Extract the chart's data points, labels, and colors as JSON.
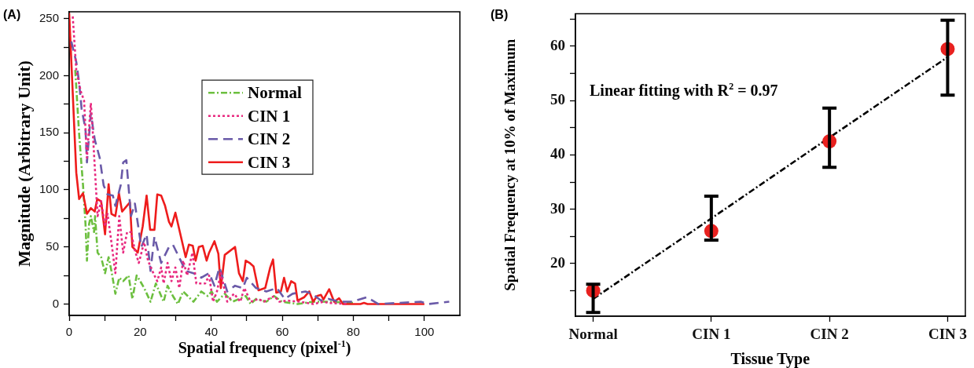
{
  "chart_data": [
    {
      "type": "line",
      "title": "(A)",
      "xlabel": "Spatial frequency (pixel$^{-1}$)",
      "ylabel": "Magnitude (Arbitrary Unit)",
      "xlim": [
        0,
        110
      ],
      "ylim": [
        -10,
        256
      ],
      "xticks": [
        0,
        {
          "value": 10,
          "label": null
        },
        20,
        {
          "value": 30,
          "label": null
        },
        40,
        {
          "value": 50,
          "label": null
        },
        60,
        {
          "value": 70,
          "label": null
        },
        80,
        {
          "value": 90,
          "label": null
        },
        100
      ],
      "yticks": [
        0,
        {
          "value": 25,
          "label": null
        },
        50,
        {
          "value": 75,
          "label": null
        },
        100,
        {
          "value": 125,
          "label": null
        },
        150,
        {
          "value": 175,
          "label": null
        },
        200,
        {
          "value": 225,
          "label": null
        },
        250
      ],
      "legend": "top",
      "series": [
        {
          "name": "Normal",
          "color": "#6cbf3f",
          "line_style": "dashdot",
          "x": [
            1.7,
            2.8,
            3.9,
            4.6,
            5,
            5.6,
            6.1,
            7,
            7.3,
            8,
            9,
            10.1,
            11.1,
            11.9,
            13,
            14.1,
            15.2,
            16.7,
            17.8,
            19,
            20,
            21.1,
            22.9,
            24.4,
            26.6,
            27.7,
            29.2,
            30.6,
            32.1,
            35,
            37.2,
            39,
            40.1,
            41.6,
            43.8,
            46,
            49.7,
            51.1,
            52.6,
            55.5,
            57.7,
            59.9,
            64.3,
            68.7,
            73,
            80
          ],
          "values": [
            205,
            149,
            104,
            70,
            38,
            70,
            77,
            63,
            77,
            45,
            41,
            27,
            41,
            29,
            9,
            23,
            20,
            25,
            4.5,
            25,
            20,
            14,
            2,
            18,
            2,
            16,
            7,
            0,
            11,
            2,
            11,
            7,
            11,
            2,
            9,
            2,
            7,
            0,
            4.5,
            2,
            7,
            2,
            0,
            2,
            2,
            1
          ]
        },
        {
          "name": "CIN 1",
          "color": "#e8297f",
          "line_style": "dotted",
          "x": [
            1,
            2,
            3.2,
            4.2,
            5,
            6.1,
            6.6,
            7.5,
            8,
            9,
            10.1,
            10.8,
            11.9,
            13,
            14.1,
            15.2,
            16.3,
            17.4,
            18.5,
            19.6,
            21.1,
            22.2,
            23.7,
            24.8,
            25.9,
            26.6,
            27.7,
            28.8,
            29.9,
            31,
            32.1,
            33.2,
            34.7,
            35.8,
            37.2,
            38.3,
            39.4,
            40.5,
            41.6,
            42.7,
            44.5,
            46.4,
            48.2,
            49.3,
            51.1,
            53.3,
            54.8,
            57.7,
            59.2,
            61.4,
            65,
            68.7,
            71.6,
            73,
            78
          ],
          "values": [
            252,
            205,
            187,
            178,
            128,
            176,
            153,
            104,
            77,
            90,
            68,
            79,
            54,
            27,
            77,
            45,
            63,
            63,
            47,
            36,
            54,
            38,
            27,
            20,
            32,
            18,
            36,
            20,
            32,
            14,
            38,
            25,
            45,
            18,
            18,
            18,
            25,
            2,
            11,
            27,
            2,
            9,
            2,
            14,
            2,
            4.5,
            2,
            7,
            2,
            3,
            2,
            0,
            2,
            1,
            0
          ]
        },
        {
          "name": "CIN 2",
          "color": "#6a5aa8",
          "line_style": "dashed",
          "x": [
            0.6,
            2,
            2.8,
            3.5,
            4.6,
            5,
            6.1,
            7.2,
            8.6,
            9.7,
            10.8,
            12.3,
            13,
            14.5,
            15.2,
            16.1,
            17.4,
            18.5,
            20.3,
            21.8,
            22.9,
            24,
            25.9,
            28.1,
            29.2,
            31.4,
            32.8,
            35,
            37.2,
            39.4,
            40.9,
            42.3,
            44.5,
            46.7,
            48.9,
            50,
            52.6,
            55.5,
            58.5,
            60.7,
            62.9,
            66.5,
            68.4,
            70.9,
            73,
            76,
            79.7,
            83.8,
            87,
            99,
            101.2,
            107
          ],
          "values": [
            230,
            212,
            194,
            171,
            153,
            124,
            167,
            144,
            128,
            104,
            96,
            95,
            86,
            104,
            124,
            126,
            77,
            88,
            50,
            61,
            29,
            59,
            36,
            50,
            52,
            38,
            29,
            27,
            23,
            27,
            16,
            32,
            11,
            16,
            14,
            23,
            14,
            11,
            14,
            4.5,
            9,
            11,
            9,
            3,
            4.5,
            2,
            2,
            6,
            0,
            2,
            0,
            2
          ]
        },
        {
          "name": "CIN 3",
          "color": "#ee1c1c",
          "line_style": "solid",
          "x": [
            0,
            2,
            2.8,
            3.9,
            5,
            6.1,
            7.2,
            7.9,
            9,
            10.1,
            11.1,
            11.9,
            13,
            14,
            14.9,
            17.1,
            17.8,
            19.3,
            20.7,
            21.8,
            22.8,
            24,
            24.8,
            25.9,
            27,
            28.1,
            28.8,
            29.9,
            32.8,
            33.7,
            34.8,
            35.6,
            36.5,
            37.6,
            38.7,
            39.4,
            40.9,
            42,
            42.7,
            43.8,
            46.7,
            47.8,
            48.9,
            49.7,
            50.8,
            51.9,
            53.3,
            55.2,
            56.6,
            57.4,
            58.3,
            59.6,
            60.5,
            61.4,
            62.5,
            63.6,
            64.3,
            66.2,
            67.6,
            68.7,
            69.8,
            70.9,
            71.6,
            73.2,
            74.6,
            76,
            77.1,
            82,
            83,
            84,
            100
          ],
          "values": [
            255,
            115,
            92,
            97,
            79,
            84,
            81,
            92,
            90,
            61,
            105,
            79,
            77,
            97,
            81,
            89,
            50,
            45,
            68,
            95,
            65,
            65,
            96,
            95,
            86,
            72,
            68,
            80,
            41,
            52,
            51,
            38,
            50,
            51,
            38,
            45,
            55,
            44,
            14,
            43,
            50,
            27,
            20,
            38,
            36,
            33,
            12,
            14,
            32,
            39,
            10,
            11,
            23,
            11,
            20,
            18,
            3,
            6,
            11,
            2,
            7,
            8,
            4,
            13,
            2,
            5,
            0,
            0,
            1,
            0,
            0
          ]
        }
      ]
    },
    {
      "type": "scatter",
      "title": "(B)",
      "xlabel": "Tissue Type",
      "ylabel": "Spatial Frequency at 10% of Maximum",
      "categories": [
        "Normal",
        "CIN 1",
        "CIN 2",
        "CIN 3"
      ],
      "ylim": [
        10.3,
        66
      ],
      "yticks": [
        {
          "value": 15,
          "label": null
        },
        20,
        {
          "value": 25,
          "label": null
        },
        30,
        {
          "value": 35,
          "label": null
        },
        40,
        {
          "value": 45,
          "label": null
        },
        50,
        {
          "value": 55,
          "label": null
        },
        60,
        {
          "value": 65,
          "label": null
        }
      ],
      "annotations": [
        "Linear fitting with R$^{2}$ = 0.97"
      ],
      "series": [
        {
          "type": "line",
          "color": "#000000",
          "line_style": "dashdot",
          "values": [
            13.5,
            28.3,
            43.2,
            58
          ]
        },
        {
          "color": "#e8211f",
          "marker": "circle",
          "values": [
            15,
            26,
            42.5,
            59.5
          ],
          "errors": [
            [
              11,
              16.2
            ],
            [
              24.3,
              32.4
            ],
            [
              37.7,
              48.6
            ],
            [
              51,
              64.8
            ]
          ]
        }
      ]
    }
  ]
}
